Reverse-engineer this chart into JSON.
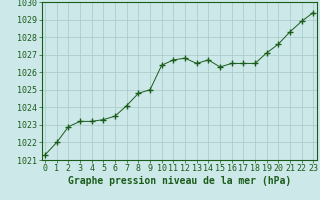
{
  "x": [
    0,
    1,
    2,
    3,
    4,
    5,
    6,
    7,
    8,
    9,
    10,
    11,
    12,
    13,
    14,
    15,
    16,
    17,
    18,
    19,
    20,
    21,
    22,
    23
  ],
  "y": [
    1021.3,
    1022.0,
    1022.9,
    1023.2,
    1023.2,
    1023.3,
    1023.5,
    1024.1,
    1024.8,
    1025.0,
    1026.4,
    1026.7,
    1026.8,
    1026.5,
    1026.7,
    1026.3,
    1026.5,
    1026.5,
    1026.5,
    1027.1,
    1027.6,
    1028.3,
    1028.9,
    1029.4
  ],
  "ylim": [
    1021,
    1030
  ],
  "yticks": [
    1021,
    1022,
    1023,
    1024,
    1025,
    1026,
    1027,
    1028,
    1029,
    1030
  ],
  "xticks": [
    0,
    1,
    2,
    3,
    4,
    5,
    6,
    7,
    8,
    9,
    10,
    11,
    12,
    13,
    14,
    15,
    16,
    17,
    18,
    19,
    20,
    21,
    22,
    23
  ],
  "xlabel": "Graphe pression niveau de la mer (hPa)",
  "line_color": "#1a5c1a",
  "marker_color": "#1a5c1a",
  "bg_color": "#cce8e8",
  "grid_color": "#a8c8c8",
  "border_color": "#1a5c1a",
  "tick_label_color": "#1a5c1a",
  "xlabel_color": "#1a5c1a",
  "xlabel_fontsize": 7,
  "tick_fontsize": 6
}
